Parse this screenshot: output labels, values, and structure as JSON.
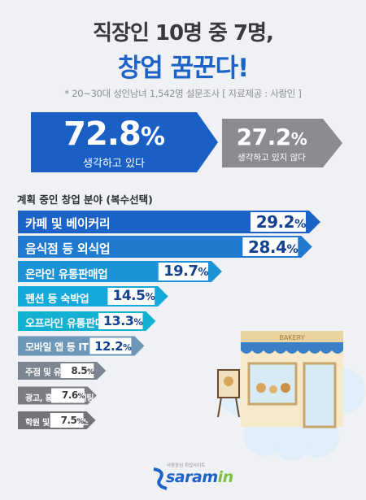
{
  "header": {
    "title_line1": "직장인 10명 중 7명,",
    "title_line2": "창업 꿈꾼다!",
    "note": "* 20~30대 성인남녀 1,542명 설문조사 [ 자료제공 : 사람인 ]"
  },
  "summary": {
    "yes": {
      "value": "72.8",
      "unit": "%",
      "label": "생각하고 있다"
    },
    "no": {
      "value": "27.2",
      "unit": "%",
      "label": "생각하고 있지 않다"
    }
  },
  "section_title": "계획 중인 창업 분야 (복수선택)",
  "chart_data": [
    {
      "type": "bar",
      "categories": [
        "생각하고 있다",
        "생각하고 있지 않다"
      ],
      "values": [
        72.8,
        27.2
      ],
      "unit": "%"
    },
    {
      "type": "bar",
      "orientation": "horizontal",
      "title": "계획 중인 창업 분야 (복수선택)",
      "categories": [
        "카페 및 베이커리",
        "음식점 등 외식업",
        "온라인 유통판매업",
        "펜션 등 숙박업",
        "오프라인 유통판매업",
        "모바일 앱 등 IT",
        "주점 및 유흥서비스",
        "광고, 홍보 등 마케팅",
        "학원 및 교육서비스"
      ],
      "values": [
        29.2,
        28.4,
        19.7,
        14.5,
        13.3,
        12.2,
        8.5,
        7.6,
        7.5
      ],
      "unit": "%"
    }
  ],
  "colors": {
    "yes_box": "#1a5fc4",
    "no_box": "#8a8c90",
    "bars": [
      "#1b63c6",
      "#1f7ad0",
      "#1c93d6",
      "#14a8db",
      "#13b1d1",
      "#6c97b8",
      "#7d8591",
      "#7b7d82",
      "#727478"
    ]
  },
  "illustration": {
    "sign": "BAKERY"
  },
  "logo": {
    "tagline": "사람중심 취업사이트",
    "name": "saram",
    "suffix": "in"
  }
}
